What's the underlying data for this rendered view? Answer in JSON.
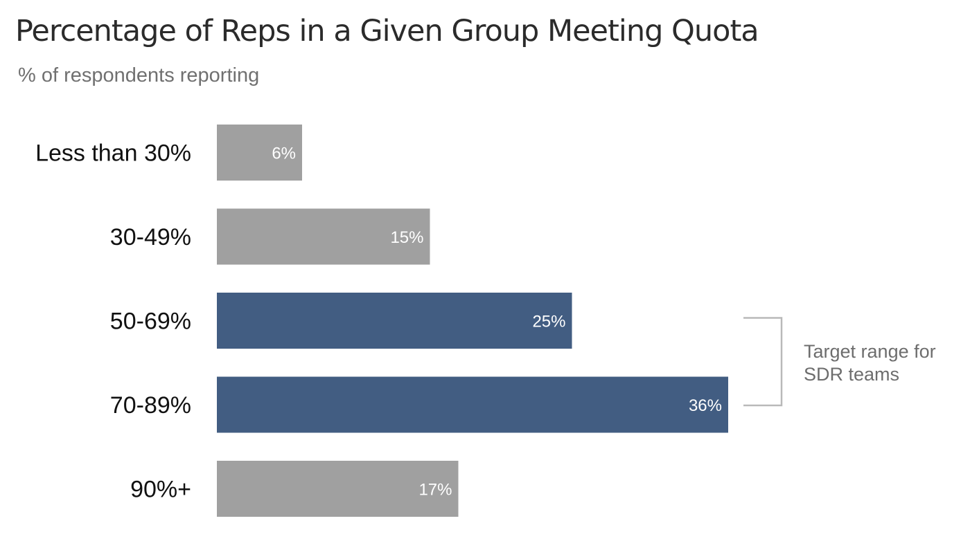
{
  "chart_data": {
    "type": "bar",
    "orientation": "horizontal",
    "title": "Percentage of Reps in a Given Group Meeting Quota",
    "subtitle": "% of respondents reporting",
    "categories": [
      "Less than 30%",
      "30-49%",
      "50-69%",
      "70-89%",
      "90%+"
    ],
    "values": [
      6,
      15,
      25,
      36,
      17
    ],
    "value_labels": [
      "6%",
      "15%",
      "25%",
      "36%",
      "17%"
    ],
    "highlighted": [
      false,
      false,
      true,
      true,
      false
    ],
    "xlim": [
      0,
      36
    ],
    "grid": false,
    "legend": "none",
    "annotation": {
      "lines": [
        "Target range for",
        "SDR teams"
      ],
      "spans_categories": [
        "50-69%",
        "70-89%"
      ]
    }
  },
  "colors": {
    "bar_default": "#a0a0a0",
    "bar_highlight": "#425d82",
    "bracket": "#b9b9b9",
    "title": "#2b2b2b",
    "subtitle": "#707070"
  }
}
